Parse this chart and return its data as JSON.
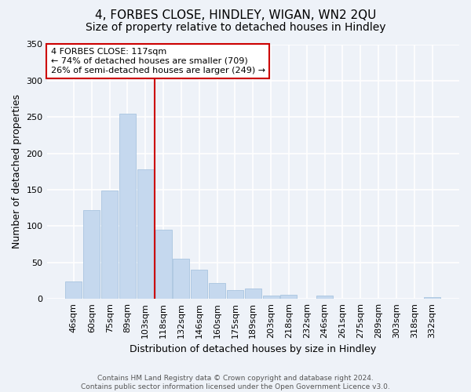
{
  "title": "4, FORBES CLOSE, HINDLEY, WIGAN, WN2 2QU",
  "subtitle": "Size of property relative to detached houses in Hindley",
  "xlabel": "Distribution of detached houses by size in Hindley",
  "ylabel": "Number of detached properties",
  "categories": [
    "46sqm",
    "60sqm",
    "75sqm",
    "89sqm",
    "103sqm",
    "118sqm",
    "132sqm",
    "146sqm",
    "160sqm",
    "175sqm",
    "189sqm",
    "203sqm",
    "218sqm",
    "232sqm",
    "246sqm",
    "261sqm",
    "275sqm",
    "289sqm",
    "303sqm",
    "318sqm",
    "332sqm"
  ],
  "values": [
    24,
    122,
    149,
    255,
    178,
    95,
    55,
    40,
    22,
    12,
    14,
    5,
    6,
    0,
    5,
    0,
    0,
    0,
    0,
    0,
    2
  ],
  "bar_color": "#c5d8ee",
  "bar_edge_color": "#a8c4e0",
  "marker_line_color": "#cc0000",
  "ylim": [
    0,
    350
  ],
  "yticks": [
    0,
    50,
    100,
    150,
    200,
    250,
    300,
    350
  ],
  "annotation_title": "4 FORBES CLOSE: 117sqm",
  "annotation_line1": "← 74% of detached houses are smaller (709)",
  "annotation_line2": "26% of semi-detached houses are larger (249) →",
  "annotation_box_facecolor": "#ffffff",
  "annotation_box_edgecolor": "#cc0000",
  "footer_line1": "Contains HM Land Registry data © Crown copyright and database right 2024.",
  "footer_line2": "Contains public sector information licensed under the Open Government Licence v3.0.",
  "bg_color": "#eef2f8",
  "plot_bg_color": "#eef2f8",
  "grid_color": "#ffffff",
  "title_fontsize": 11,
  "subtitle_fontsize": 10,
  "ylabel_fontsize": 9,
  "xlabel_fontsize": 9,
  "tick_fontsize": 8,
  "annotation_fontsize": 8,
  "footer_fontsize": 6.5
}
